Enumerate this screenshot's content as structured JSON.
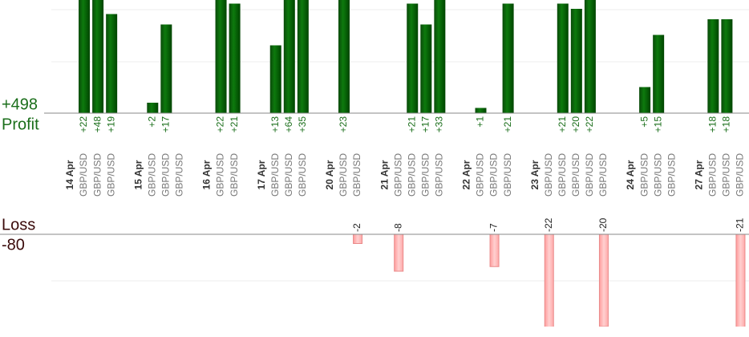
{
  "summary": {
    "profit_total": "+498",
    "profit_title": "Profit",
    "loss_title": "Loss",
    "loss_total": "-80"
  },
  "groups": [
    {
      "date": "14 Apr",
      "trades": [
        {
          "pair": "GBP/USD",
          "value": 22,
          "label": "+22"
        },
        {
          "pair": "GBP/USD",
          "value": 48,
          "label": "+48"
        },
        {
          "pair": "GBP/USD",
          "value": 19,
          "label": "+19"
        }
      ]
    },
    {
      "date": "15 Apr",
      "trades": [
        {
          "pair": "GBP/USD",
          "value": 2,
          "label": "+2"
        },
        {
          "pair": "GBP/USD",
          "value": 17,
          "label": "+17"
        },
        {
          "pair": "GBP/USD",
          "value": null
        }
      ]
    },
    {
      "date": "16 Apr",
      "trades": [
        {
          "pair": "GBP/USD",
          "value": 22,
          "label": "+22"
        },
        {
          "pair": "GBP/USD",
          "value": 21,
          "label": "+21"
        }
      ]
    },
    {
      "date": "17 Apr",
      "trades": [
        {
          "pair": "GBP/USD",
          "value": 13,
          "label": "+13"
        },
        {
          "pair": "GBP/USD",
          "value": 64,
          "label": "+64"
        },
        {
          "pair": "GBP/USD",
          "value": 35,
          "label": "+35"
        }
      ]
    },
    {
      "date": "20 Apr",
      "trades": [
        {
          "pair": "GBP/USD",
          "value": 23,
          "label": "+23"
        },
        {
          "pair": "GBP/USD",
          "value": -2,
          "label": "-2"
        }
      ]
    },
    {
      "date": "21 Apr",
      "trades": [
        {
          "pair": "GBP/USD",
          "value": -8,
          "label": "-8"
        },
        {
          "pair": "GBP/USD",
          "value": 21,
          "label": "+21"
        },
        {
          "pair": "GBP/USD",
          "value": 17,
          "label": "+17"
        },
        {
          "pair": "GBP/USD",
          "value": 33,
          "label": "+33"
        }
      ]
    },
    {
      "date": "22 Apr",
      "trades": [
        {
          "pair": "GBP/USD",
          "value": 1,
          "label": "+1"
        },
        {
          "pair": "GBP/USD",
          "value": -7,
          "label": "-7"
        },
        {
          "pair": "GBP/USD",
          "value": 21,
          "label": "+21"
        }
      ]
    },
    {
      "date": "23 Apr",
      "trades": [
        {
          "pair": "GBP/USD",
          "value": -22,
          "label": "-22"
        },
        {
          "pair": "GBP/USD",
          "value": 21,
          "label": "+21"
        },
        {
          "pair": "GBP/USD",
          "value": 20,
          "label": "+20"
        },
        {
          "pair": "GBP/USD",
          "value": 22,
          "label": "+22"
        },
        {
          "pair": "GBP/USD",
          "value": -20,
          "label": "-20"
        }
      ]
    },
    {
      "date": "24 Apr",
      "trades": [
        {
          "pair": "GBP/USD",
          "value": 5,
          "label": "+5"
        },
        {
          "pair": "GBP/USD",
          "value": 15,
          "label": "+15"
        },
        {
          "pair": "GBP/USD",
          "value": null
        }
      ]
    },
    {
      "date": "27 Apr",
      "trades": [
        {
          "pair": "GBP/USD",
          "value": 18,
          "label": "+18"
        },
        {
          "pair": "GBP/USD",
          "value": 18,
          "label": "+18"
        },
        {
          "pair": "GBP/USD",
          "value": -21,
          "label": "-21"
        }
      ]
    }
  ]
}
